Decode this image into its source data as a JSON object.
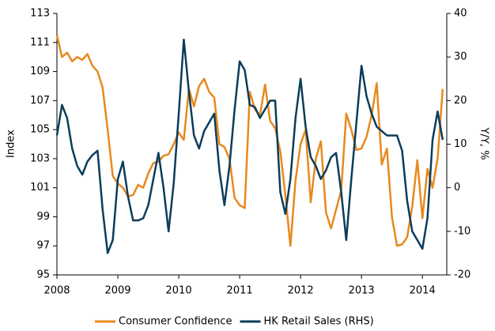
{
  "chart_data": {
    "type": "line",
    "y_label": "Index",
    "y2_label": "Y/Y, %",
    "x": [
      2008,
      2008.083,
      2008.167,
      2008.25,
      2008.333,
      2008.417,
      2008.5,
      2008.583,
      2008.667,
      2008.75,
      2008.833,
      2008.917,
      2009,
      2009.083,
      2009.167,
      2009.25,
      2009.333,
      2009.417,
      2009.5,
      2009.583,
      2009.667,
      2009.75,
      2009.833,
      2009.917,
      2010,
      2010.083,
      2010.167,
      2010.25,
      2010.333,
      2010.417,
      2010.5,
      2010.583,
      2010.667,
      2010.75,
      2010.833,
      2010.917,
      2011,
      2011.083,
      2011.167,
      2011.25,
      2011.333,
      2011.417,
      2011.5,
      2011.583,
      2011.667,
      2011.75,
      2011.833,
      2011.917,
      2012,
      2012.083,
      2012.167,
      2012.25,
      2012.333,
      2012.417,
      2012.5,
      2012.583,
      2012.667,
      2012.75,
      2012.833,
      2012.917,
      2013,
      2013.083,
      2013.167,
      2013.25,
      2013.333,
      2013.417,
      2013.5,
      2013.583,
      2013.667,
      2013.75,
      2013.833,
      2013.917,
      2014,
      2014.083,
      2014.167,
      2014.25,
      2014.333
    ],
    "series": [
      {
        "name": "Consumer Confidence",
        "color": "#e8891e",
        "axis": "y",
        "values": [
          111.5,
          110.0,
          110.3,
          109.7,
          110.0,
          109.8,
          110.2,
          109.4,
          109.0,
          107.9,
          105.0,
          101.8,
          101.3,
          101.0,
          100.4,
          100.5,
          101.2,
          101.0,
          102.0,
          102.7,
          102.8,
          103.2,
          103.3,
          104.0,
          104.8,
          104.3,
          107.8,
          106.6,
          108.0,
          108.5,
          107.6,
          107.2,
          104.0,
          103.8,
          103.0,
          100.3,
          99.8,
          99.6,
          107.6,
          106.4,
          106.0,
          108.1,
          105.6,
          105.1,
          103.5,
          100.5,
          97.0,
          101.5,
          104.0,
          105.0,
          100.0,
          103.0,
          104.2,
          99.3,
          98.2,
          99.5,
          100.8,
          106.1,
          105.0,
          103.6,
          103.7,
          104.5,
          106.0,
          108.2,
          102.6,
          103.7,
          99.0,
          97.0,
          97.1,
          97.6,
          99.7,
          102.9,
          98.9,
          102.3,
          101.0,
          103.0,
          107.8
        ]
      },
      {
        "name": "HK Retail Sales (RHS)",
        "color": "#0b3d5c",
        "axis": "y2",
        "values": [
          12,
          19,
          16,
          9,
          5,
          3,
          6,
          7.5,
          8.5,
          -5,
          -15,
          -12,
          2,
          6,
          -2,
          -7.5,
          -7.5,
          -7,
          -4,
          2,
          8,
          0,
          -10,
          1,
          17,
          34,
          22,
          12,
          9,
          13,
          15,
          17,
          4,
          -4,
          5,
          18,
          29,
          27,
          19,
          18.5,
          16,
          18,
          20,
          20,
          -1,
          -6,
          2,
          16,
          25,
          14,
          7,
          5,
          2,
          4,
          7,
          8,
          -1,
          -12,
          2,
          15,
          28,
          21,
          17,
          14,
          13,
          12,
          12,
          12,
          8.5,
          -3,
          -10,
          -12,
          -14,
          -7,
          11,
          17.5,
          11
        ]
      }
    ],
    "xlim": [
      2008,
      2014.4
    ],
    "xticks": [
      2008,
      2009,
      2010,
      2011,
      2012,
      2013,
      2014
    ],
    "ylim": [
      95,
      113
    ],
    "yticks": [
      95,
      97,
      99,
      101,
      103,
      105,
      107,
      109,
      111,
      113
    ],
    "y2lim": [
      -20,
      40
    ],
    "y2ticks": [
      -20,
      -10,
      0,
      10,
      20,
      30,
      40
    ],
    "legend": "bottom"
  }
}
